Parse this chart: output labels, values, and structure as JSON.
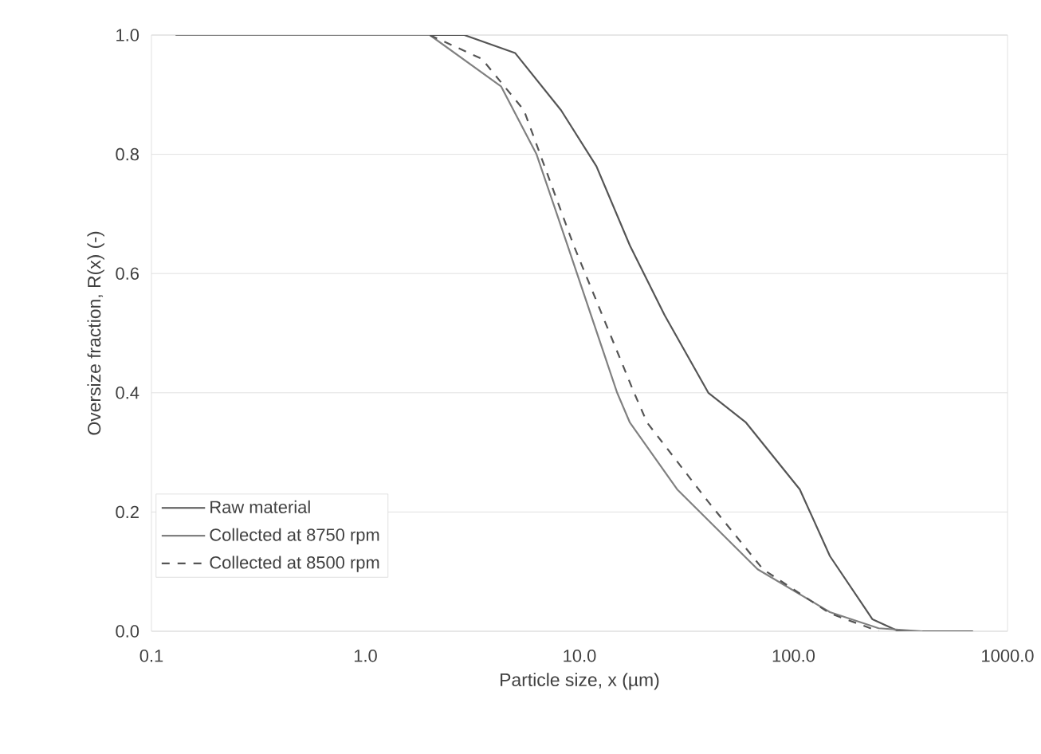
{
  "chart_data": {
    "type": "line",
    "xlabel": "Particle size, x (µm)",
    "ylabel": "Oversize fraction, R(x) (-)",
    "log": "x",
    "grid": "y",
    "legend": "bottom left",
    "xlim": [
      0.1,
      1000
    ],
    "ylim": [
      0,
      1
    ],
    "xticks": [
      {
        "value": 0.1,
        "label": "0.1"
      },
      {
        "value": 1,
        "label": "1.0"
      },
      {
        "value": 10,
        "label": "10.0"
      },
      {
        "value": 100,
        "label": "100.0"
      },
      {
        "value": 1000,
        "label": "1000.0"
      }
    ],
    "yticks": [
      {
        "value": 0,
        "label": "0.0"
      },
      {
        "value": 0.2,
        "label": "0.2"
      },
      {
        "value": 0.4,
        "label": "0.4"
      },
      {
        "value": 0.6,
        "label": "0.6"
      },
      {
        "value": 0.8,
        "label": "0.8"
      },
      {
        "value": 1,
        "label": "1.0"
      }
    ],
    "series": [
      {
        "name": "Raw material",
        "color": "#555555",
        "line_style": "solid",
        "x": [
          0.13,
          1,
          2.9,
          5,
          8.2,
          12,
          17.2,
          25,
          40,
          60,
          107,
          148,
          234,
          310,
          690
        ],
        "values": [
          1,
          1,
          1,
          0.97,
          0.874,
          0.78,
          0.647,
          0.53,
          0.4,
          0.35,
          0.238,
          0.126,
          0.02,
          0,
          0
        ]
      },
      {
        "name": "Collected at 8750 rpm",
        "color": "#808080",
        "line_style": "solid",
        "x": [
          0.13,
          1,
          2,
          4.3,
          6.3,
          8.8,
          15,
          17.2,
          28.6,
          68,
          148,
          250,
          400
        ],
        "values": [
          1,
          1,
          1,
          0.914,
          0.8,
          0.647,
          0.4,
          0.35,
          0.238,
          0.104,
          0.032,
          0.005,
          0
        ]
      },
      {
        "name": "Collected at 8500 rpm",
        "color": "#555555",
        "line_style": "dashed",
        "x": [
          2,
          3.5,
          5.5,
          9.4,
          18,
          20.7,
          40,
          72,
          148,
          250
        ],
        "values": [
          1,
          0.96,
          0.874,
          0.647,
          0.4,
          0.35,
          0.217,
          0.104,
          0.03,
          0
        ]
      }
    ]
  }
}
